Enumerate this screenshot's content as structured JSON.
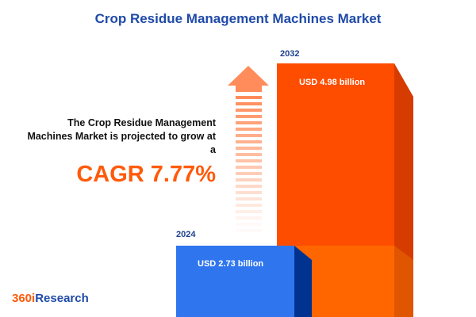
{
  "title": "Crop Residue Management Machines Market",
  "description": "The Crop Residue Management Machines Market is projected to grow at a",
  "cagr_label": "CAGR 7.77%",
  "logo": {
    "part1": "360i",
    "part2": "Research"
  },
  "colors": {
    "bar_2024": "#2f76ee",
    "bar_2032": "#ff4d00",
    "accent": "#ff5a0a",
    "title": "#1f4aa8"
  },
  "chart_data": {
    "type": "bar",
    "title": "Crop Residue Management Machines Market",
    "categories": [
      "2024",
      "2032"
    ],
    "values": [
      2.73,
      4.98
    ],
    "unit": "USD billion",
    "data_labels": [
      "USD 2.73 billion",
      "USD 4.98 billion"
    ],
    "cagr": 7.77
  }
}
